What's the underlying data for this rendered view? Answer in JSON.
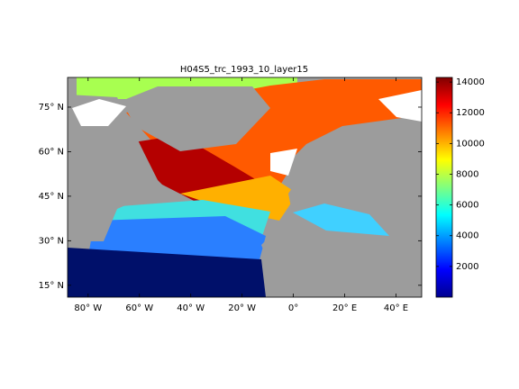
{
  "title": "H04S5_trc_1993_10_layer15",
  "map": {
    "xlim": [
      -88,
      50
    ],
    "ylim": [
      11,
      85
    ],
    "xticks": [
      {
        "value": -80,
        "label": "80° W"
      },
      {
        "value": -60,
        "label": "60° W"
      },
      {
        "value": -40,
        "label": "40° W"
      },
      {
        "value": -20,
        "label": "20° W"
      },
      {
        "value": 0,
        "label": "0°"
      },
      {
        "value": 20,
        "label": "20° E"
      },
      {
        "value": 40,
        "label": "40° E"
      }
    ],
    "yticks": [
      {
        "value": 15,
        "label": "15° N"
      },
      {
        "value": 30,
        "label": "30° N"
      },
      {
        "value": 45,
        "label": "45° N"
      },
      {
        "value": 60,
        "label": "60° N"
      },
      {
        "value": 75,
        "label": "75° N"
      }
    ]
  },
  "colorbar": {
    "clim": [
      0,
      14300
    ],
    "ticks": [
      2000,
      4000,
      6000,
      8000,
      10000,
      12000,
      14000
    ]
  }
}
